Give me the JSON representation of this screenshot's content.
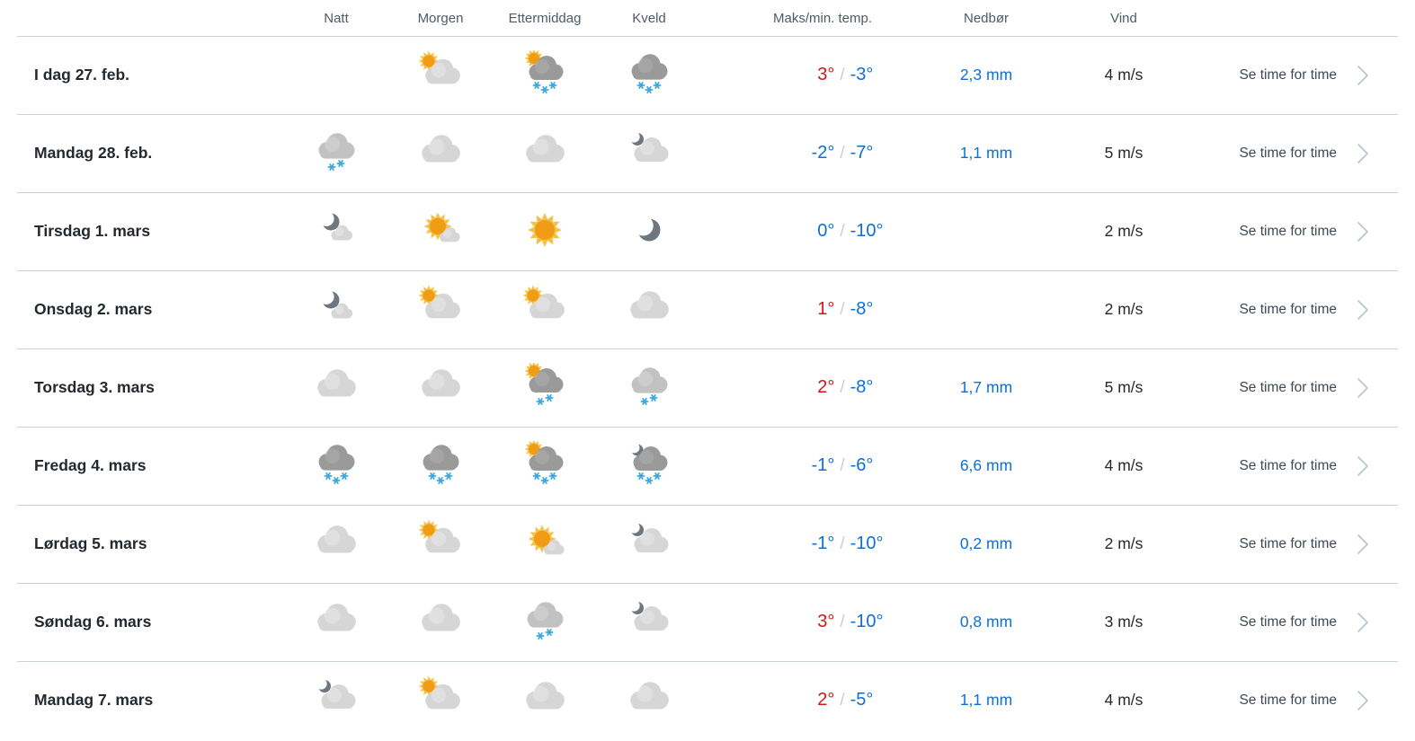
{
  "header": {
    "natt": "Natt",
    "morgen": "Morgen",
    "ettermiddag": "Ettermiddag",
    "kveld": "Kveld",
    "temp": "Maks/min. temp.",
    "nedbor": "Nedbør",
    "vind": "Vind"
  },
  "labels": {
    "link": "Se time for time",
    "slash": "/"
  },
  "colors": {
    "max_red": "#d01717",
    "min_blue": "#0c6fd6",
    "precip_blue": "#0c6fd6",
    "separator": "#c6ced6",
    "divider": "#c8d1d5",
    "header_text": "#4f5a63",
    "link_text": "#3e4955",
    "chevron": "#b6c2ce",
    "sun_core": "#f09c15",
    "sun_ray": "#f6c14a",
    "cloud_light": "#d6d6d6",
    "cloud_light_hi": "#e6e6e6",
    "cloud_medium": "#c2c2c2",
    "cloud_medium_hi": "#d4d4d4",
    "cloud_dark": "#9a9a9a",
    "cloud_dark_hi": "#aeaeae",
    "moon": "#6e7780",
    "snowflake": "#39a9e0"
  },
  "rows": [
    {
      "day": "I dag 27. feb.",
      "icons": {
        "natt": "",
        "morgen": "fair-day",
        "ettermiddag": "snow-showers-day",
        "kveld": "snow"
      },
      "max": "3°",
      "max_class": "red",
      "min": "-3°",
      "precip": "2,3 mm",
      "wind": "4 m/s"
    },
    {
      "day": "Mandag 28. feb.",
      "icons": {
        "natt": "light-snow",
        "morgen": "cloudy",
        "ettermiddag": "cloudy",
        "kveld": "fair-night"
      },
      "max": "-2°",
      "max_class": "blue",
      "min": "-7°",
      "precip": "1,1 mm",
      "wind": "5 m/s"
    },
    {
      "day": "Tirsdag 1. mars",
      "icons": {
        "natt": "moon-cloud",
        "morgen": "sunny-cloud",
        "ettermiddag": "sun-day",
        "kveld": "clear-night"
      },
      "max": "0°",
      "max_class": "blue",
      "min": "-10°",
      "precip": "",
      "wind": "2 m/s"
    },
    {
      "day": "Onsdag 2. mars",
      "icons": {
        "natt": "moon-cloud",
        "morgen": "fair-day",
        "ettermiddag": "fair-day",
        "kveld": "cloudy"
      },
      "max": "1°",
      "max_class": "red",
      "min": "-8°",
      "precip": "",
      "wind": "2 m/s"
    },
    {
      "day": "Torsdag 3. mars",
      "icons": {
        "natt": "cloudy",
        "morgen": "cloudy",
        "ettermiddag": "light-snow-showers-day",
        "kveld": "light-snow"
      },
      "max": "2°",
      "max_class": "red",
      "min": "-8°",
      "precip": "1,7 mm",
      "wind": "5 m/s"
    },
    {
      "day": "Fredag 4. mars",
      "icons": {
        "natt": "snow",
        "morgen": "snow",
        "ettermiddag": "snow-showers-day",
        "kveld": "snow-showers-night"
      },
      "max": "-1°",
      "max_class": "blue",
      "min": "-6°",
      "precip": "6,6 mm",
      "wind": "4 m/s"
    },
    {
      "day": "Lørdag 5. mars",
      "icons": {
        "natt": "cloudy",
        "morgen": "fair-day",
        "ettermiddag": "sunny-cloud",
        "kveld": "fair-night"
      },
      "max": "-1°",
      "max_class": "blue",
      "min": "-10°",
      "precip": "0,2 mm",
      "wind": "2 m/s"
    },
    {
      "day": "Søndag 6. mars",
      "icons": {
        "natt": "cloudy",
        "morgen": "cloudy",
        "ettermiddag": "light-snow",
        "kveld": "fair-night"
      },
      "max": "3°",
      "max_class": "red",
      "min": "-10°",
      "precip": "0,8 mm",
      "wind": "3 m/s"
    },
    {
      "day": "Mandag 7. mars",
      "icons": {
        "natt": "fair-night",
        "morgen": "fair-day",
        "ettermiddag": "cloudy",
        "kveld": "cloudy"
      },
      "max": "2°",
      "max_class": "red",
      "min": "-5°",
      "precip": "1,1 mm",
      "wind": "4 m/s"
    }
  ]
}
